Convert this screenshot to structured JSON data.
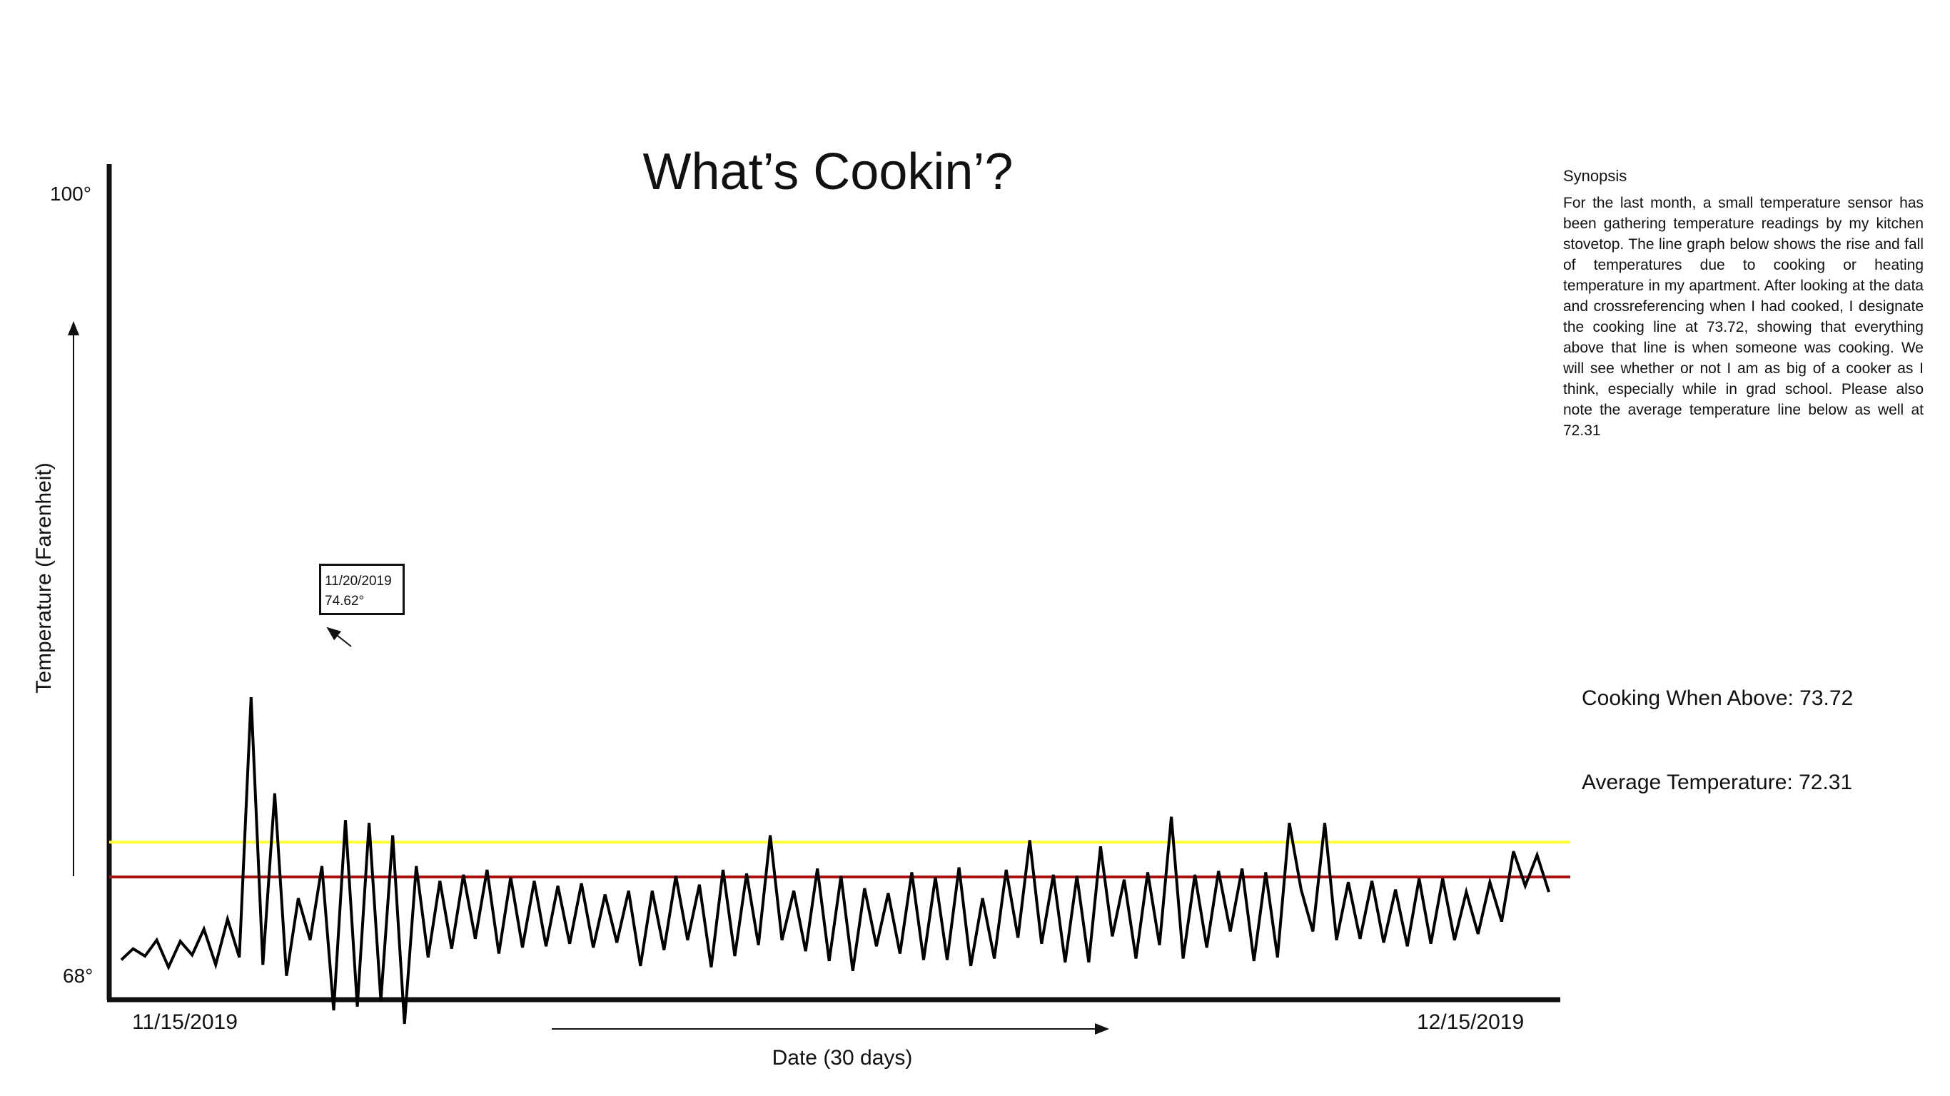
{
  "chart_data": {
    "type": "line",
    "title": "What’s Cookin’?",
    "xlabel": "Date (30 days)",
    "ylabel": "Temperature (Farenheit)",
    "x_tick_labels": [
      "11/15/2019",
      "12/15/2019"
    ],
    "y_tick_labels": [
      "100°",
      "68°"
    ],
    "ylim": [
      68,
      100
    ],
    "x_start_label": "11/15/2019",
    "x_end_label": "12/15/2019",
    "grid": false,
    "line_color": "#000000",
    "series": [
      {
        "values": [
          68.95,
          69.4,
          69.1,
          69.75,
          68.65,
          69.7,
          69.15,
          70.2,
          68.75,
          70.6,
          69.05,
          79.6,
          68.75,
          75.7,
          68.3,
          71.45,
          69.75,
          72.75,
          66.9,
          74.62,
          67.05,
          74.5,
          67.3,
          74.0,
          66.35,
          72.75,
          69.05,
          72.15,
          69.4,
          72.4,
          69.8,
          72.6,
          69.2,
          72.3,
          69.45,
          72.15,
          69.5,
          71.95,
          69.6,
          72.05,
          69.45,
          71.6,
          69.65,
          71.75,
          68.7,
          71.75,
          69.35,
          72.35,
          69.75,
          72.0,
          68.65,
          72.6,
          69.1,
          72.45,
          69.55,
          74.0,
          69.75,
          71.75,
          69.3,
          72.65,
          68.9,
          72.35,
          68.5,
          71.85,
          69.5,
          71.65,
          69.2,
          72.5,
          68.95,
          72.3,
          68.95,
          72.7,
          68.7,
          71.45,
          69.0,
          72.6,
          69.85,
          73.8,
          69.6,
          72.4,
          68.85,
          72.35,
          68.85,
          73.55,
          69.9,
          72.2,
          69.0,
          72.5,
          69.55,
          74.75,
          69.0,
          72.4,
          69.45,
          72.55,
          70.1,
          72.65,
          68.9,
          72.5,
          69.05,
          74.5,
          71.8,
          70.1,
          74.5,
          69.75,
          72.1,
          69.8,
          72.15,
          69.65,
          71.8,
          69.5,
          72.25,
          69.6,
          72.25,
          69.75,
          71.7,
          70.0,
          72.1,
          70.5,
          73.35,
          71.95,
          73.2,
          71.7
        ]
      }
    ],
    "reference_lines": [
      {
        "name": "Cooking When Above",
        "value": 73.72,
        "label": "Cooking When Above: 73.72",
        "color": "#ffff33"
      },
      {
        "name": "Average Temperature",
        "value": 72.31,
        "label": "Average Temperature: 72.31",
        "color": "#aa1111"
      }
    ],
    "annotation": {
      "date": "11/20/2019",
      "value": "74.62°",
      "point_index": 19
    }
  },
  "synopsis": {
    "heading": "Synopsis",
    "text": "For the last month, a small temperature sensor has been gathering temperature readings by my kitchen stovetop. The line graph below shows the rise and fall of temperatures due to cooking or heating temperature in my apartment. After looking at the data and crossreferencing when I had cooked, I designate the cooking line at 73.72, showing that everything above that line is when someone was cooking. We will see whether or not I am as big of a cooker as I think, especially while in grad school. Please also note the average temperature line below as well at 72.31"
  }
}
